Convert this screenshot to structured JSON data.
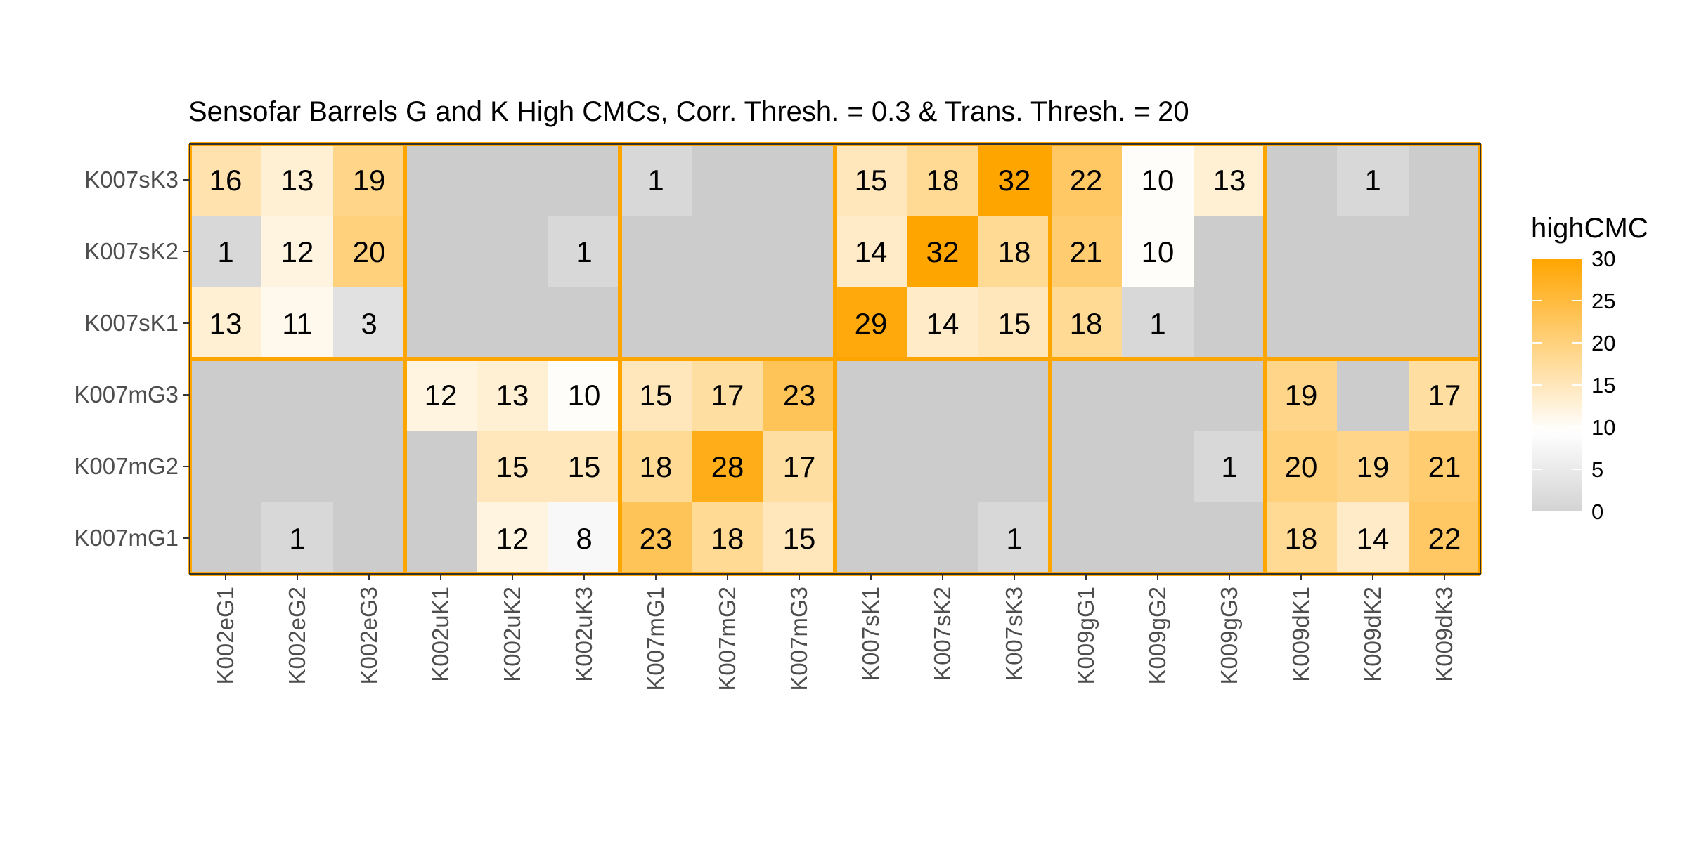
{
  "chart_data": {
    "type": "heatmap",
    "title": "Sensofar Barrels G and K High CMCs, Corr. Thresh. = 0.3 & Trans. Thresh. = 20",
    "x_categories": [
      "K002eG1",
      "K002eG2",
      "K002eG3",
      "K002uK1",
      "K002uK2",
      "K002uK3",
      "K007mG1",
      "K007mG2",
      "K007mG3",
      "K007sK1",
      "K007sK2",
      "K007sK3",
      "K009gG1",
      "K009gG2",
      "K009gG3",
      "K009dK1",
      "K009dK2",
      "K009dK3"
    ],
    "y_categories": [
      "K007sK3",
      "K007sK2",
      "K007sK1",
      "K007mG3",
      "K007mG2",
      "K007mG1"
    ],
    "values": [
      [
        16,
        13,
        19,
        null,
        null,
        null,
        1,
        null,
        null,
        15,
        18,
        32,
        22,
        10,
        13,
        null,
        1,
        null
      ],
      [
        1,
        12,
        20,
        null,
        null,
        1,
        null,
        null,
        null,
        14,
        32,
        18,
        21,
        10,
        null,
        null,
        null,
        null
      ],
      [
        13,
        11,
        3,
        null,
        null,
        null,
        null,
        null,
        null,
        29,
        14,
        15,
        18,
        1,
        null,
        null,
        null,
        null
      ],
      [
        null,
        null,
        null,
        12,
        13,
        10,
        15,
        17,
        23,
        null,
        null,
        null,
        null,
        null,
        null,
        19,
        null,
        17
      ],
      [
        null,
        null,
        null,
        null,
        15,
        15,
        18,
        28,
        17,
        null,
        null,
        null,
        null,
        null,
        1,
        20,
        19,
        21
      ],
      [
        null,
        1,
        null,
        null,
        12,
        8,
        23,
        18,
        15,
        null,
        null,
        1,
        null,
        null,
        null,
        18,
        14,
        22
      ]
    ],
    "legend": {
      "title": "highCMC",
      "ticks": [
        0,
        5,
        10,
        15,
        20,
        25,
        30
      ],
      "placement": "right"
    },
    "color_scale": {
      "low": "#d3d3d3",
      "mid": "#ffffff",
      "high": "#ffa500",
      "midpoint": 9.5,
      "max": 30,
      "missing": "#cccccc"
    },
    "group_separator_color": "#ffa500",
    "column_groups": 6,
    "row_groups": 2
  }
}
